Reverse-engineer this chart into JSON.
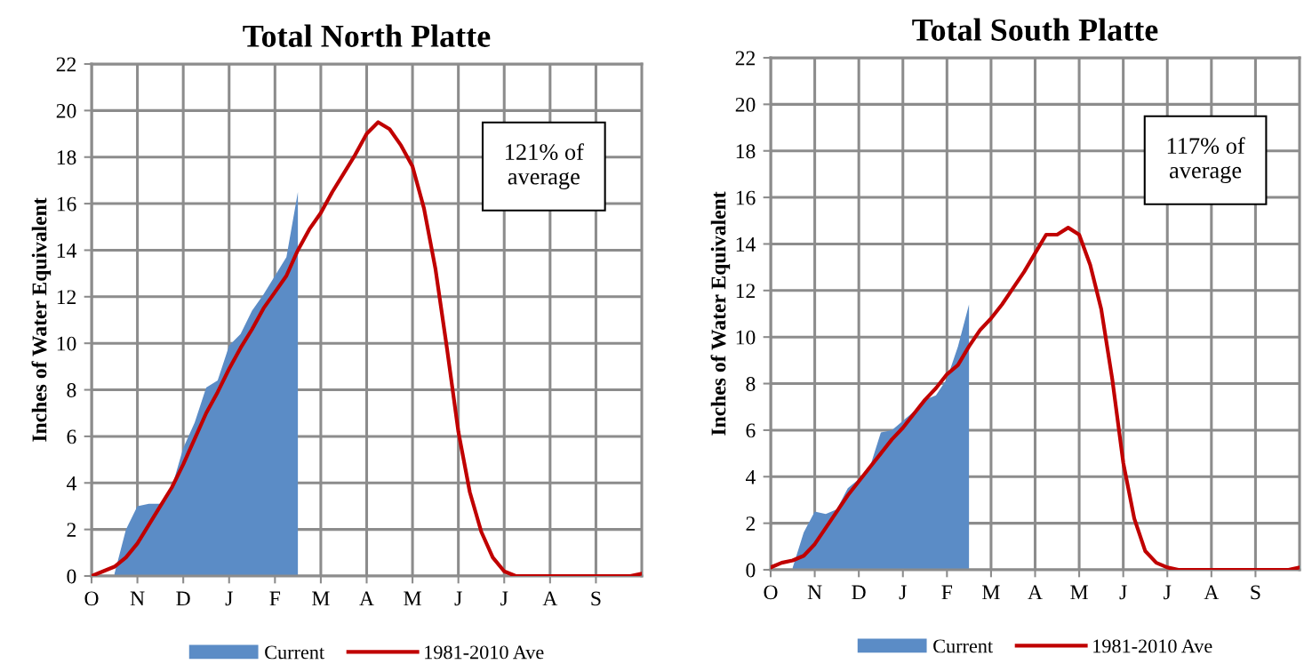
{
  "chart_data": [
    {
      "type": "area",
      "title": "Total North Platte",
      "ylabel": "Inches of Water Equivalent",
      "ylim": [
        0,
        22
      ],
      "categories": [
        "O",
        null,
        null,
        null,
        "N",
        null,
        null,
        null,
        "D",
        null,
        null,
        null,
        "J",
        null,
        null,
        null,
        "F",
        null,
        null,
        null,
        "M",
        null,
        null,
        null,
        "A",
        null,
        null,
        null,
        "M",
        null,
        null,
        null,
        "J",
        null,
        null,
        null,
        "J",
        null,
        null,
        null,
        "A",
        null,
        null,
        null,
        "S",
        null,
        null,
        null,
        null
      ],
      "yticks": [
        0,
        2,
        4,
        6,
        8,
        10,
        12,
        14,
        16,
        18,
        20,
        22
      ],
      "grid": true,
      "legend": "bottom",
      "annotations": [
        "121% of\naverage"
      ],
      "series": [
        {
          "name": "Current",
          "color": "#5b8cc6",
          "values": [
            null,
            null,
            0.1,
            2.0,
            3.0,
            3.1,
            3.1,
            3.8,
            5.5,
            6.6,
            8.1,
            8.4,
            9.9,
            10.4,
            11.4,
            12.1,
            12.9,
            13.7,
            16.5,
            null,
            null,
            null,
            null,
            null,
            null,
            null,
            null,
            null,
            null,
            null,
            null,
            null,
            null,
            null,
            null,
            null,
            null,
            null,
            null,
            null,
            null,
            null,
            null,
            null,
            null,
            null,
            null,
            null,
            null
          ]
        },
        {
          "name": "1981-2010 Ave",
          "type": "line",
          "color": "#c00000",
          "values": [
            0.0,
            0.2,
            0.4,
            0.8,
            1.4,
            2.2,
            3.0,
            3.8,
            4.8,
            5.9,
            7.0,
            7.9,
            8.9,
            9.8,
            10.6,
            11.5,
            12.2,
            12.9,
            14.0,
            14.9,
            15.6,
            16.5,
            17.3,
            18.1,
            19.0,
            19.5,
            19.2,
            18.5,
            17.6,
            15.8,
            13.2,
            9.8,
            6.2,
            3.6,
            1.9,
            0.8,
            0.2,
            0.0,
            0.0,
            0.0,
            0.0,
            0.0,
            0.0,
            0.0,
            0.0,
            0.0,
            0.0,
            0.0,
            0.1
          ]
        }
      ]
    },
    {
      "type": "area",
      "title": "Total South Platte",
      "ylabel": "Inches of Water Equivalent",
      "ylim": [
        0,
        22
      ],
      "categories": [
        "O",
        null,
        null,
        null,
        "N",
        null,
        null,
        null,
        "D",
        null,
        null,
        null,
        "J",
        null,
        null,
        null,
        "F",
        null,
        null,
        null,
        "M",
        null,
        null,
        null,
        "A",
        null,
        null,
        null,
        "M",
        null,
        null,
        null,
        "J",
        null,
        null,
        null,
        "J",
        null,
        null,
        null,
        "A",
        null,
        null,
        null,
        "S",
        null,
        null,
        null,
        null
      ],
      "yticks": [
        0,
        2,
        4,
        6,
        8,
        10,
        12,
        14,
        16,
        18,
        20,
        22
      ],
      "grid": true,
      "legend": "bottom",
      "annotations": [
        "117% of\naverage"
      ],
      "series": [
        {
          "name": "Current",
          "color": "#5b8cc6",
          "values": [
            null,
            null,
            0.1,
            1.6,
            2.5,
            2.4,
            2.6,
            3.5,
            3.9,
            4.4,
            5.9,
            6.0,
            6.4,
            6.8,
            7.3,
            7.5,
            8.2,
            9.6,
            11.4,
            null,
            null,
            null,
            null,
            null,
            null,
            null,
            null,
            null,
            null,
            null,
            null,
            null,
            null,
            null,
            null,
            null,
            null,
            null,
            null,
            null,
            null,
            null,
            null,
            null,
            null,
            null,
            null,
            null,
            null
          ]
        },
        {
          "name": "1981-2010 Ave",
          "type": "line",
          "color": "#c00000",
          "values": [
            0.1,
            0.3,
            0.4,
            0.6,
            1.1,
            1.8,
            2.5,
            3.2,
            3.8,
            4.4,
            5.0,
            5.6,
            6.1,
            6.7,
            7.3,
            7.8,
            8.4,
            8.8,
            9.6,
            10.3,
            10.8,
            11.4,
            12.1,
            12.8,
            13.6,
            14.4,
            14.4,
            14.7,
            14.4,
            13.1,
            11.2,
            8.2,
            4.6,
            2.2,
            0.8,
            0.3,
            0.1,
            0.0,
            0.0,
            0.0,
            0.0,
            0.0,
            0.0,
            0.0,
            0.0,
            0.0,
            0.0,
            0.0,
            0.1
          ]
        }
      ]
    }
  ]
}
